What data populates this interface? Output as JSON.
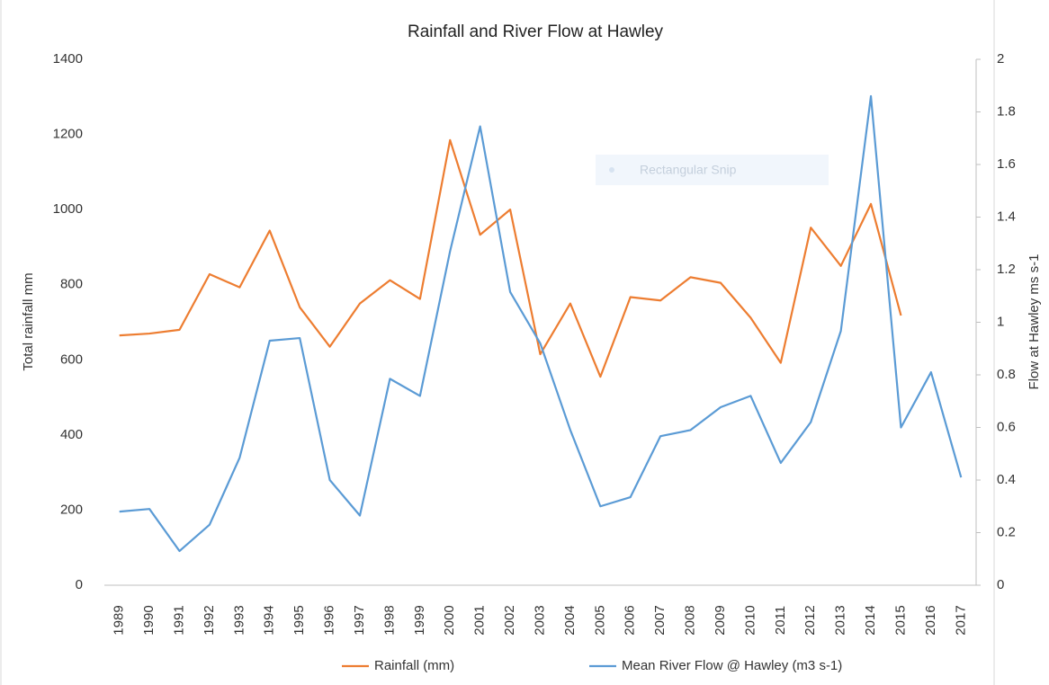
{
  "chart_data": {
    "type": "line",
    "title": "Rainfall and River Flow at Hawley",
    "y_label": "Total rainfall mm",
    "y2_label": "Flow at Hawley ms s-1",
    "overlay_text": "Rectangular Snip",
    "categories": [
      "1989",
      "1990",
      "1991",
      "1992",
      "1993",
      "1994",
      "1995",
      "1996",
      "1997",
      "1998",
      "1999",
      "2000",
      "2001",
      "2002",
      "2003",
      "2004",
      "2005",
      "2006",
      "2007",
      "2008",
      "2009",
      "2010",
      "2011",
      "2012",
      "2013",
      "2014",
      "2015",
      "2016",
      "2017"
    ],
    "series": [
      {
        "name": "Rainfall (mm)",
        "color": "#ed7d31",
        "axis": "y",
        "values": [
          665,
          670,
          680,
          828,
          793,
          944,
          740,
          635,
          750,
          812,
          762,
          1185,
          933,
          1000,
          615,
          750,
          555,
          767,
          758,
          820,
          805,
          712,
          592,
          952,
          850,
          1015,
          718,
          null,
          null
        ]
      },
      {
        "name": "Mean River Flow @ Hawley (m3 s-1)",
        "color": "#5b9bd5",
        "axis": "y2",
        "values": [
          0.28,
          0.29,
          0.13,
          0.23,
          0.485,
          0.93,
          0.94,
          0.4,
          0.265,
          0.785,
          0.72,
          1.27,
          1.745,
          1.115,
          0.92,
          0.59,
          0.3,
          0.335,
          0.567,
          0.59,
          0.677,
          0.72,
          0.465,
          0.62,
          0.967,
          1.86,
          0.6,
          0.81,
          0.41
        ]
      }
    ],
    "ylim": [
      0,
      1400
    ],
    "yticks": [
      0,
      200,
      400,
      600,
      800,
      1000,
      1200,
      1400
    ],
    "y2lim": [
      0,
      2
    ],
    "y2ticks": [
      0,
      0.2,
      0.4,
      0.6,
      0.8,
      1,
      1.2,
      1.4,
      1.6,
      1.8,
      2
    ],
    "legend": "bottom",
    "grid": false
  }
}
